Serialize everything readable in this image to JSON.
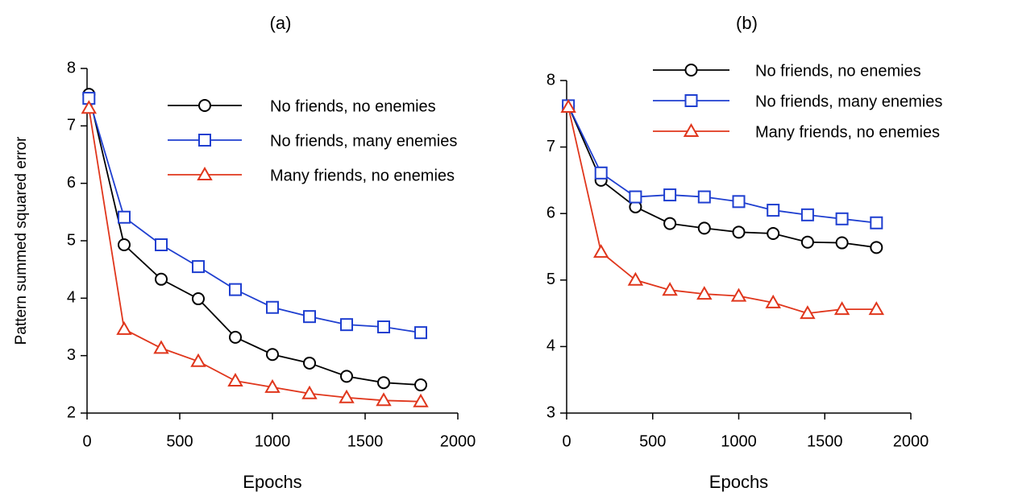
{
  "chart_data": [
    {
      "type": "line",
      "title": "(a)",
      "x_label": "Epochs",
      "y_label": "Pattern summed squared error",
      "x": [
        10,
        200,
        400,
        600,
        800,
        1000,
        1200,
        1400,
        1600,
        1800
      ],
      "series": [
        {
          "name": "No friends, no enemies",
          "color": "#000000",
          "marker": "circle",
          "values": [
            7.55,
            4.93,
            4.33,
            3.99,
            3.32,
            3.02,
            2.87,
            2.64,
            2.53,
            2.49
          ]
        },
        {
          "name": "No friends, many enemies",
          "color": "#1f3fd0",
          "marker": "square",
          "values": [
            7.48,
            5.41,
            4.93,
            4.55,
            4.15,
            3.84,
            3.68,
            3.54,
            3.5,
            3.4
          ]
        },
        {
          "name": "Many friends, no enemies",
          "color": "#e0361c",
          "marker": "triangle",
          "values": [
            7.31,
            3.46,
            3.13,
            2.9,
            2.56,
            2.45,
            2.34,
            2.27,
            2.22,
            2.2
          ]
        }
      ],
      "xlim": [
        0,
        2000
      ],
      "xticks": [
        0,
        500,
        1000,
        1500,
        2000
      ],
      "ylim": [
        2,
        8
      ],
      "yticks": [
        2,
        3,
        4,
        5,
        6,
        7,
        8
      ]
    },
    {
      "type": "line",
      "title": "(b)",
      "x_label": "Epochs",
      "x": [
        10,
        200,
        400,
        600,
        800,
        1000,
        1200,
        1400,
        1600,
        1800
      ],
      "series": [
        {
          "name": "No friends, no enemies",
          "color": "#000000",
          "marker": "circle",
          "values": [
            7.62,
            6.5,
            6.1,
            5.85,
            5.78,
            5.72,
            5.7,
            5.57,
            5.56,
            5.49
          ]
        },
        {
          "name": "No friends, many enemies",
          "color": "#1f3fd0",
          "marker": "square",
          "values": [
            7.62,
            6.61,
            6.25,
            6.28,
            6.25,
            6.18,
            6.05,
            5.98,
            5.92,
            5.86
          ]
        },
        {
          "name": "Many friends, no enemies",
          "color": "#e0361c",
          "marker": "triangle",
          "values": [
            7.6,
            5.42,
            5.0,
            4.85,
            4.79,
            4.76,
            4.66,
            4.5,
            4.56,
            4.56
          ]
        }
      ],
      "xlim": [
        0,
        2000
      ],
      "xticks": [
        0,
        500,
        1000,
        1500,
        2000
      ],
      "ylim": [
        3,
        8
      ],
      "yticks": [
        3,
        4,
        5,
        6,
        7,
        8
      ]
    }
  ]
}
